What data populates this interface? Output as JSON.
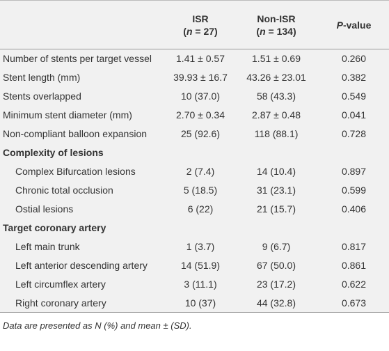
{
  "header": {
    "label": "",
    "columns": [
      {
        "line1": "ISR",
        "line2": [
          "(",
          "n",
          " = 27)"
        ]
      },
      {
        "line1": "Non-ISR",
        "line2": [
          "(",
          "n",
          " = 134)"
        ]
      },
      {
        "line1": [
          "P",
          "-value"
        ]
      }
    ]
  },
  "groups": [
    {
      "rows": [
        {
          "label": "Number of stents per target vessel",
          "isr": "1.41 ± 0.57",
          "non_isr": "1.51 ± 0.69",
          "p_value": "0.260"
        },
        {
          "label": "Stent length (mm)",
          "isr": "39.93 ± 16.7",
          "non_isr": "43.26 ± 23.01",
          "p_value": "0.382"
        },
        {
          "label": "Stents overlapped",
          "isr": "10 (37.0)",
          "non_isr": "58 (43.3)",
          "p_value": "0.549"
        },
        {
          "label": "Minimum stent diameter (mm)",
          "isr": "2.70 ± 0.34",
          "non_isr": "2.87 ± 0.48",
          "p_value": "0.041"
        },
        {
          "label": "Non-compliant balloon expansion",
          "isr": "25 (92.6)",
          "non_isr": "118 (88.1)",
          "p_value": "0.728"
        }
      ]
    },
    {
      "heading": "Complexity of lesions",
      "rows": [
        {
          "label": "Complex Bifurcation lesions",
          "isr": "2 (7.4)",
          "non_isr": "14 (10.4)",
          "p_value": "0.897"
        },
        {
          "label": "Chronic total occlusion",
          "isr": "5 (18.5)",
          "non_isr": "31 (23.1)",
          "p_value": "0.599"
        },
        {
          "label": "Ostial lesions",
          "isr": "6 (22)",
          "non_isr": "21 (15.7)",
          "p_value": "0.406"
        }
      ]
    },
    {
      "heading": "Target coronary artery",
      "rows": [
        {
          "label": "Left main trunk",
          "isr": "1 (3.7)",
          "non_isr": "9 (6.7)",
          "p_value": "0.817"
        },
        {
          "label": "Left anterior descending artery",
          "isr": "14 (51.9)",
          "non_isr": "67 (50.0)",
          "p_value": "0.861"
        },
        {
          "label": "Left circumflex artery",
          "isr": "3 (11.1)",
          "non_isr": "23 (17.2)",
          "p_value": "0.622"
        },
        {
          "label": "Right coronary artery",
          "isr": "10 (37)",
          "non_isr": "44 (32.8)",
          "p_value": "0.673"
        }
      ]
    }
  ],
  "footnote": "Data are presented as N (%) and mean ± (SD)."
}
